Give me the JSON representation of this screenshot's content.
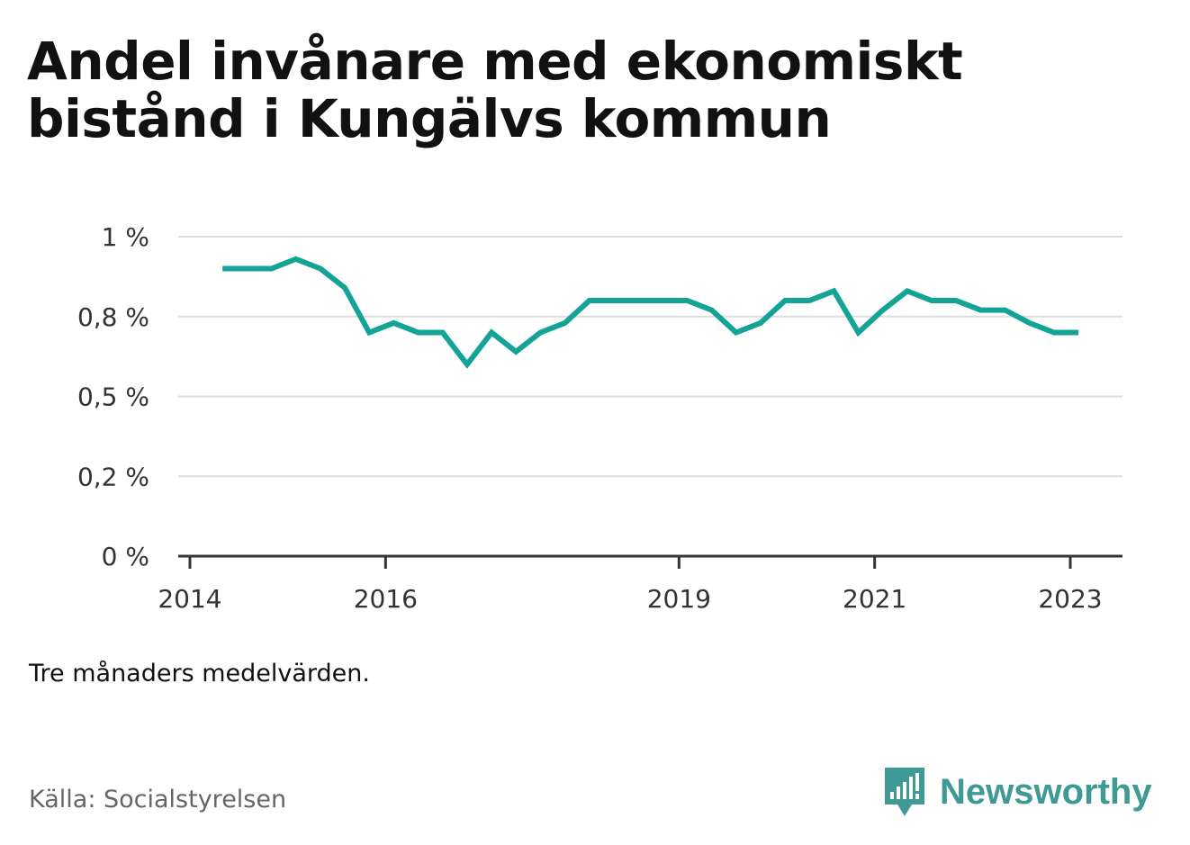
{
  "title": "Andel invånare med ekonomiskt bistånd i Kungälvs kommun",
  "caption": "Tre månaders medelvärden.",
  "source": "Källa: Socialstyrelsen",
  "brand": {
    "name": "Newsworthy",
    "color": "#3f9a96"
  },
  "chart_data": {
    "type": "line",
    "title": "Andel invånare med ekonomiskt bistånd i Kungälvs kommun",
    "xlabel": "",
    "ylabel": "",
    "x_ticks": [
      "2014",
      "2016",
      "2019",
      "2021",
      "2023"
    ],
    "y_ticks": [
      "0 %",
      "0,2 %",
      "0,5 %",
      "0,8 %",
      "1 %"
    ],
    "ylim": [
      0,
      1
    ],
    "grid": true,
    "color": "#13a397",
    "series": [
      {
        "x": [
          "2014-05",
          "2014-08",
          "2014-11",
          "2015-02",
          "2015-05",
          "2015-08",
          "2015-11",
          "2016-02",
          "2016-05",
          "2016-08",
          "2016-11",
          "2017-02",
          "2017-05",
          "2017-08",
          "2017-11",
          "2018-02",
          "2018-05",
          "2018-08",
          "2018-11",
          "2019-02",
          "2019-05",
          "2019-08",
          "2019-11",
          "2020-02",
          "2020-05",
          "2020-08",
          "2020-11",
          "2021-02",
          "2021-05",
          "2021-08",
          "2021-11",
          "2022-02",
          "2022-05",
          "2022-08",
          "2022-11",
          "2023-02"
        ],
        "values": [
          0.9,
          0.9,
          0.9,
          0.93,
          0.9,
          0.84,
          0.7,
          0.73,
          0.7,
          0.7,
          0.6,
          0.7,
          0.64,
          0.7,
          0.73,
          0.8,
          0.8,
          0.8,
          0.8,
          0.8,
          0.77,
          0.7,
          0.73,
          0.8,
          0.8,
          0.83,
          0.7,
          0.77,
          0.83,
          0.8,
          0.8,
          0.77,
          0.77,
          0.73,
          0.7,
          0.7
        ]
      }
    ]
  }
}
